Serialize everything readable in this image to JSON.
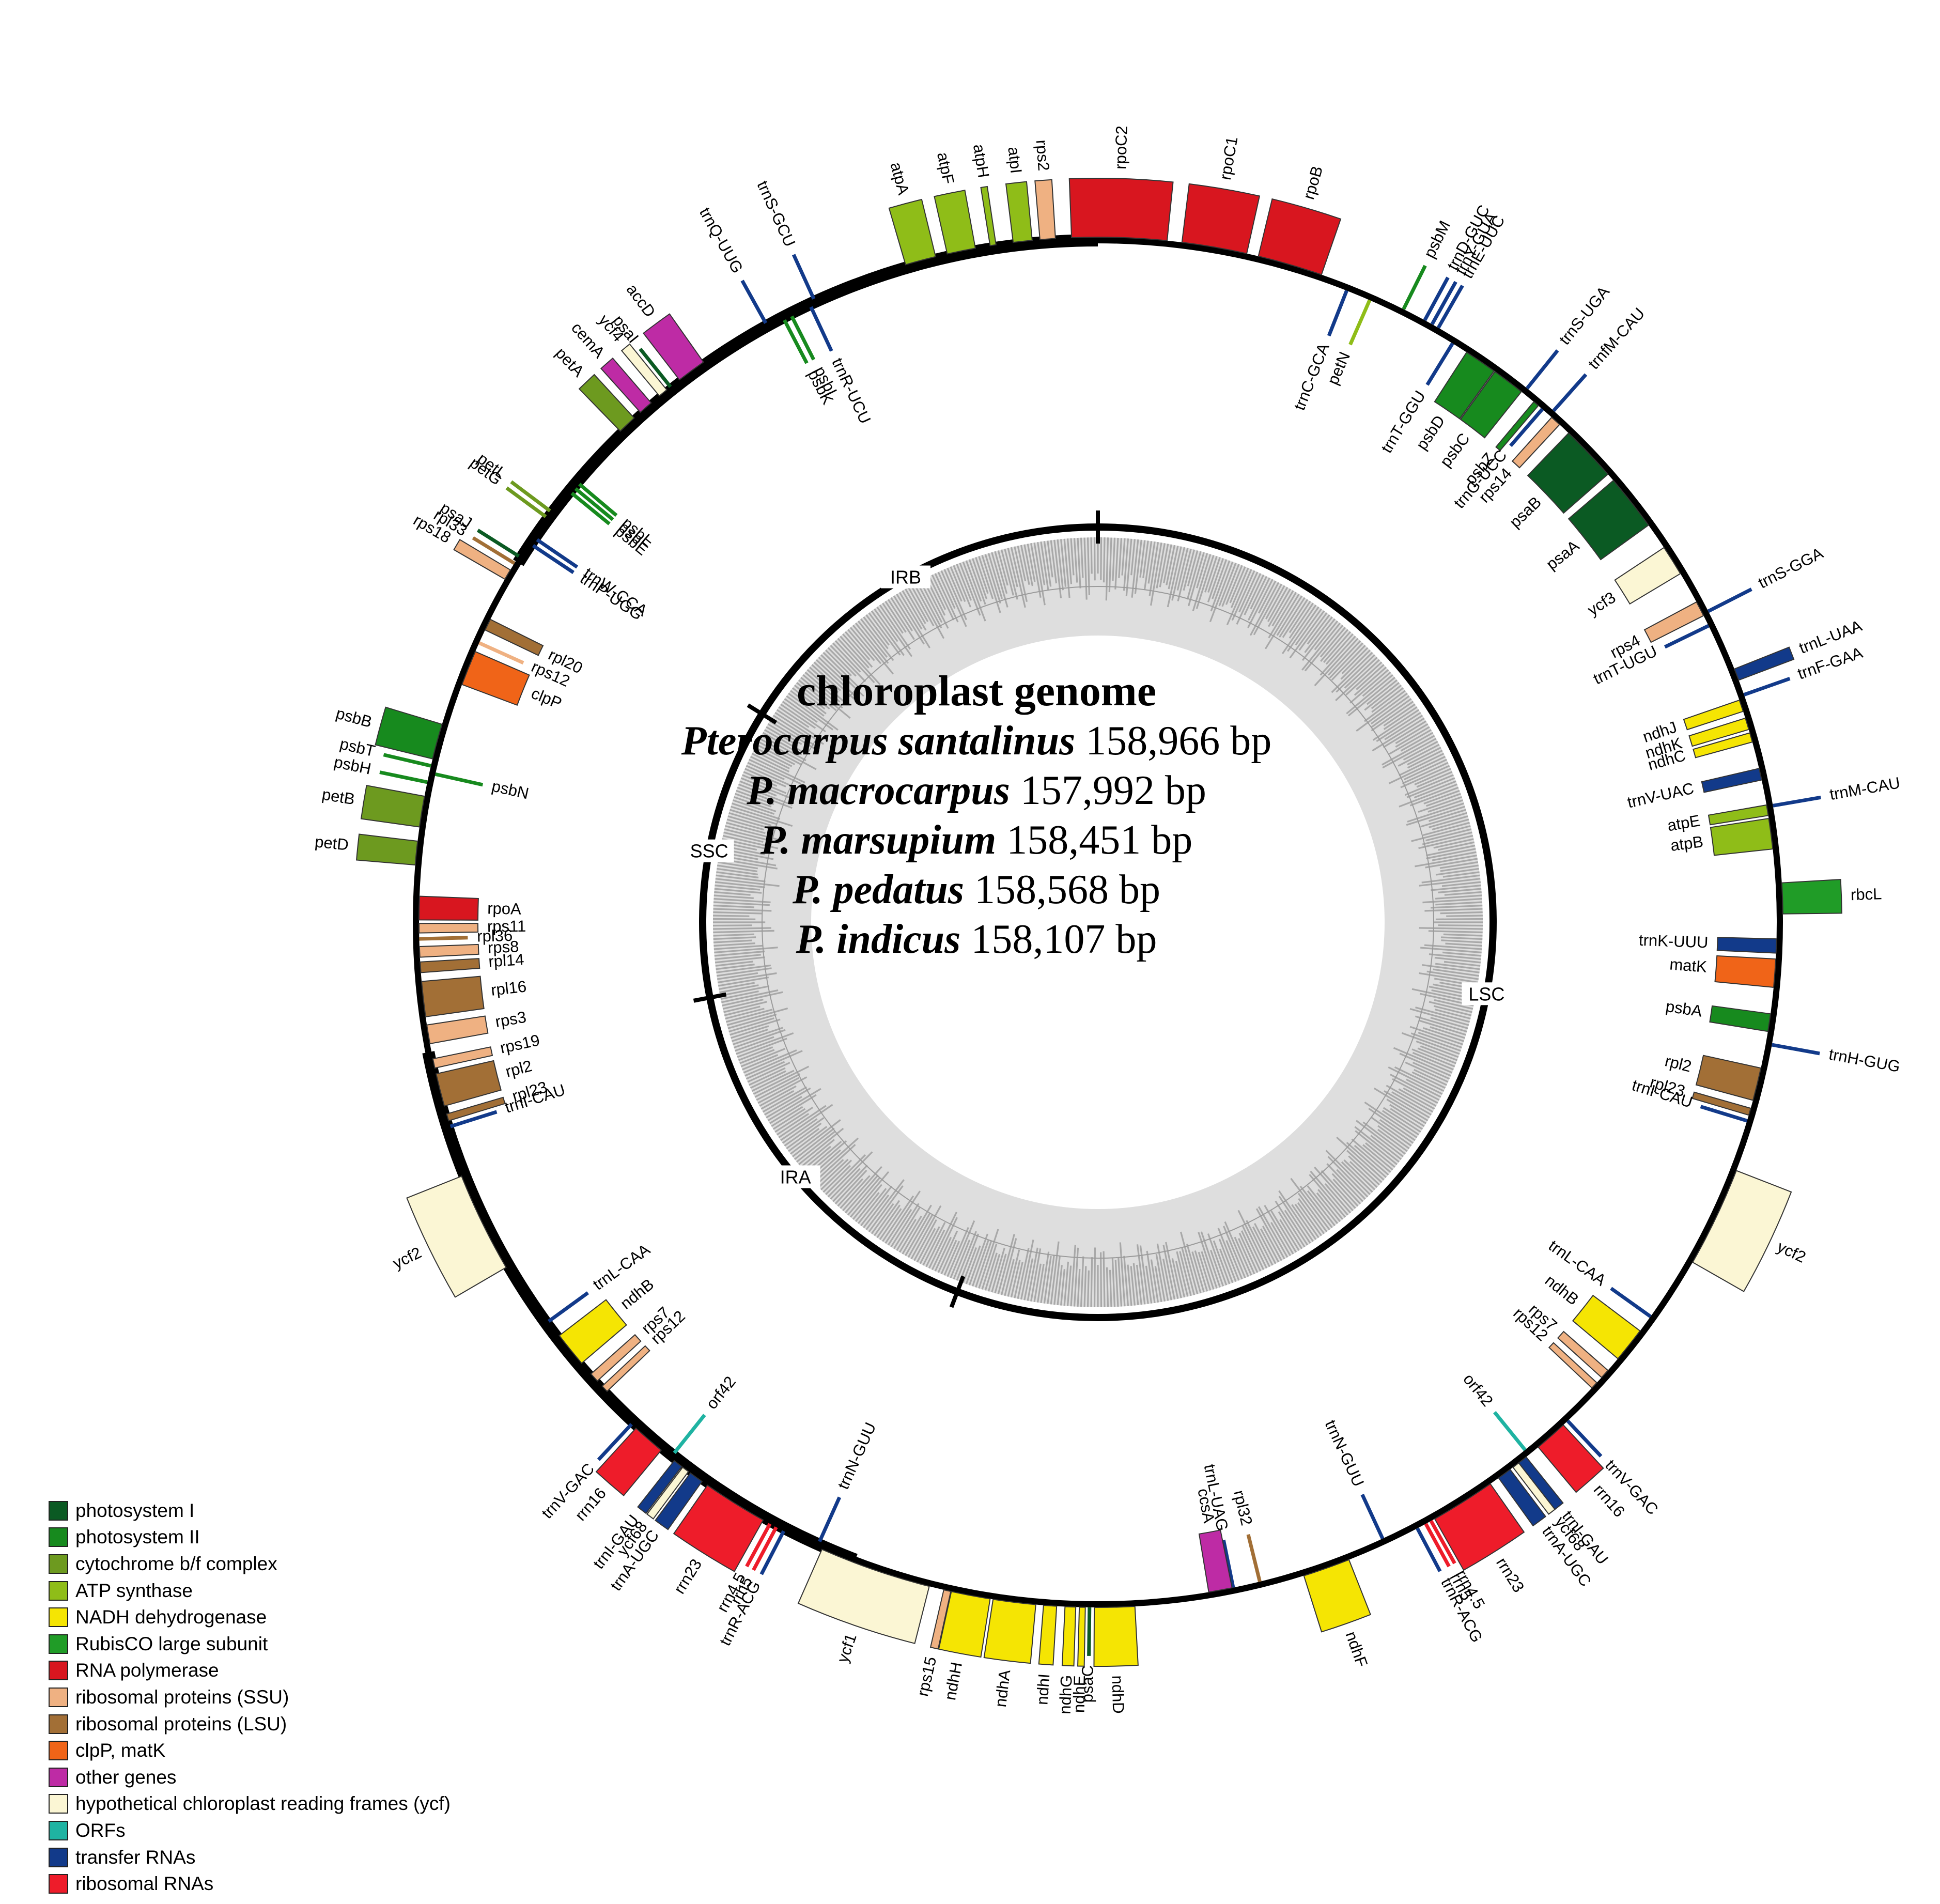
{
  "title": "chloroplast genome",
  "species": [
    {
      "name": "Pterocarpus santalinus",
      "size": "158,966 bp"
    },
    {
      "name": "P. macrocarpus",
      "size": "157,992 bp"
    },
    {
      "name": "P. marsupium",
      "size": "158,451 bp"
    },
    {
      "name": "P. pedatus",
      "size": "158,568 bp"
    },
    {
      "name": "P. indicus",
      "size": "158,107 bp"
    }
  ],
  "regions": [
    {
      "label": "LSC",
      "start": 0,
      "end": 88.7
    },
    {
      "label": "IRA",
      "start": 88.7,
      "end": 114.4
    },
    {
      "label": "SSC",
      "start": 114.4,
      "end": 133.3
    },
    {
      "label": "IRB",
      "start": 133.3,
      "end": 159.0
    }
  ],
  "legend": [
    {
      "key": "psI",
      "label": "photosystem I",
      "color": "#0b5a23"
    },
    {
      "key": "psII",
      "label": "photosystem II",
      "color": "#178a1e"
    },
    {
      "key": "cyt",
      "label": "cytochrome b/f complex",
      "color": "#6d9a1f"
    },
    {
      "key": "atp",
      "label": "ATP synthase",
      "color": "#8fbd18"
    },
    {
      "key": "ndh",
      "label": "NADH dehydrogenase",
      "color": "#f5e503"
    },
    {
      "key": "rbc",
      "label": "RubisCO large subunit",
      "color": "#209c27"
    },
    {
      "key": "rpo",
      "label": "RNA polymerase",
      "color": "#d8161f"
    },
    {
      "key": "ssu",
      "label": "ribosomal proteins (SSU)",
      "color": "#efb182"
    },
    {
      "key": "lsu",
      "label": "ribosomal proteins (LSU)",
      "color": "#a26f36"
    },
    {
      "key": "clp",
      "label": "clpP, matK",
      "color": "#f06418"
    },
    {
      "key": "oth",
      "label": "other genes",
      "color": "#be2ba5"
    },
    {
      "key": "ycf",
      "label": "hypothetical chloroplast reading frames (ycf)",
      "color": "#fbf6d4"
    },
    {
      "key": "orf",
      "label": "ORFs",
      "color": "#1fb3a2"
    },
    {
      "key": "trn",
      "label": "transfer RNAs",
      "color": "#123a8a"
    },
    {
      "key": "rrn",
      "label": "ribosomal RNAs",
      "color": "#ee1c2a"
    }
  ],
  "genes": [
    {
      "name": "trnQ-UUG",
      "angle": -29,
      "span": 0.3,
      "type": "trn",
      "out": true
    },
    {
      "name": "trnS-GCU",
      "angle": -24.5,
      "span": 0.3,
      "type": "trn",
      "out": true
    },
    {
      "name": "atpA",
      "angle": -15,
      "span": 2.6,
      "type": "atp",
      "out": true
    },
    {
      "name": "atpF",
      "angle": -11.5,
      "span": 2.4,
      "type": "atp",
      "out": true
    },
    {
      "name": "atpH",
      "angle": -8.8,
      "span": 0.5,
      "type": "atp",
      "out": true
    },
    {
      "name": "atpI",
      "angle": -6.3,
      "span": 1.6,
      "type": "atp",
      "out": true
    },
    {
      "name": "rps2",
      "angle": -4.2,
      "span": 1.3,
      "type": "ssu",
      "out": true
    },
    {
      "name": "rpoC2",
      "angle": 1.8,
      "span": 8.0,
      "type": "rpo",
      "out": true
    },
    {
      "name": "rpoC1",
      "angle": 9.8,
      "span": 5.5,
      "type": "rpo",
      "out": true
    },
    {
      "name": "rpoB",
      "angle": 16.3,
      "span": 5.5,
      "type": "rpo",
      "out": true
    },
    {
      "name": "psbM",
      "angle": 26.5,
      "span": 0.3,
      "type": "psII",
      "out": true
    },
    {
      "name": "trnD-GUC",
      "angle": 28.5,
      "span": 0.3,
      "type": "trn",
      "out": true
    },
    {
      "name": "trnY-GUA",
      "angle": 29.2,
      "span": 0.3,
      "type": "trn",
      "out": true
    },
    {
      "name": "trnE-UUC",
      "angle": 29.8,
      "span": 0.3,
      "type": "trn",
      "out": true
    },
    {
      "name": "trnC-GCA",
      "angle": 21.5,
      "span": 0.3,
      "type": "trn",
      "out": false
    },
    {
      "name": "petN",
      "angle": 23.6,
      "span": 0.3,
      "type": "atp",
      "out": false
    },
    {
      "name": "trnT-GGU",
      "angle": 31.5,
      "span": 0.3,
      "type": "trn",
      "out": false
    },
    {
      "name": "psbD",
      "angle": 34.3,
      "span": 2.8,
      "type": "psII",
      "out": false
    },
    {
      "name": "psbC",
      "angle": 37.2,
      "span": 2.8,
      "type": "psII",
      "out": false
    },
    {
      "name": "psbZ",
      "angle": 40.2,
      "span": 0.5,
      "type": "psII",
      "out": false
    },
    {
      "name": "trnG-UCC",
      "angle": 40.9,
      "span": 0.3,
      "type": "trn",
      "out": false
    },
    {
      "name": "trnS-UGA",
      "angle": 38.8,
      "span": 0.3,
      "type": "trn",
      "out": true
    },
    {
      "name": "trnfM-CAU",
      "angle": 41.7,
      "span": 0.3,
      "type": "trn",
      "out": true
    },
    {
      "name": "rps14",
      "angle": 42.4,
      "span": 0.9,
      "type": "ssu",
      "out": false
    },
    {
      "name": "psaB",
      "angle": 46.3,
      "span": 4.8,
      "type": "psI",
      "out": false
    },
    {
      "name": "psaA",
      "angle": 51.8,
      "span": 4.8,
      "type": "psI",
      "out": false
    },
    {
      "name": "ycf3",
      "angle": 57.8,
      "span": 2.6,
      "type": "ycf",
      "out": false
    },
    {
      "name": "rps4",
      "angle": 62.5,
      "span": 1.3,
      "type": "ssu",
      "out": false
    },
    {
      "name": "trnT-UGU",
      "angle": 64.1,
      "span": 0.3,
      "type": "trn",
      "out": false
    },
    {
      "name": "trnS-GGA",
      "angle": 63.0,
      "span": 0.3,
      "type": "trn",
      "out": true
    },
    {
      "name": "trnL-UAA",
      "angle": 68.8,
      "span": 1.0,
      "type": "trn",
      "out": true
    },
    {
      "name": "trnF-GAA",
      "angle": 70.6,
      "span": 0.4,
      "type": "trn",
      "out": true
    },
    {
      "name": "ndhJ",
      "angle": 71.4,
      "span": 1.0,
      "type": "ndh",
      "out": false
    },
    {
      "name": "ndhK",
      "angle": 73.0,
      "span": 1.0,
      "type": "ndh",
      "out": false
    },
    {
      "name": "ndhC",
      "angle": 74.2,
      "span": 0.8,
      "type": "ndh",
      "out": false
    },
    {
      "name": "trnV-UAC",
      "angle": 77.4,
      "span": 1.0,
      "type": "trn",
      "out": false
    },
    {
      "name": "trnM-CAU",
      "angle": 80.2,
      "span": 0.3,
      "type": "trn",
      "out": true
    },
    {
      "name": "atpE",
      "angle": 80.5,
      "span": 0.9,
      "type": "atp",
      "out": false
    },
    {
      "name": "atpB",
      "angle": 82.5,
      "span": 2.6,
      "type": "atp",
      "out": false
    },
    {
      "name": "rbcL",
      "angle": 88.0,
      "span": 2.6,
      "type": "rbc",
      "out": true
    },
    {
      "name": "trnK-UUU",
      "angle": 92.0,
      "span": 1.2,
      "type": "trn",
      "out": false
    },
    {
      "name": "matK",
      "angle": 94.3,
      "span": 2.4,
      "type": "clp",
      "out": false
    },
    {
      "name": "psbA",
      "angle": 98.5,
      "span": 1.5,
      "type": "psII",
      "out": false
    },
    {
      "name": "trnH-GUG",
      "angle": 100.3,
      "span": 0.3,
      "type": "trn",
      "out": true
    },
    {
      "name": "rpl2",
      "angle": 103.8,
      "span": 2.8,
      "type": "lsu",
      "out": false
    },
    {
      "name": "rpl23",
      "angle": 106.2,
      "span": 0.6,
      "type": "lsu",
      "out": false
    },
    {
      "name": "trnI-CAU",
      "angle": 107.0,
      "span": 0.3,
      "type": "trn",
      "out": false
    },
    {
      "name": "ycf2",
      "angle": 115.5,
      "span": 8.5,
      "type": "ycf",
      "out": true
    },
    {
      "name": "trnL-CAA",
      "angle": 125.5,
      "span": 0.3,
      "type": "trn",
      "out": false
    },
    {
      "name": "ndhB",
      "angle": 128.5,
      "span": 3.0,
      "type": "ndh",
      "out": false
    },
    {
      "name": "rps7",
      "angle": 131.7,
      "span": 0.8,
      "type": "ssu",
      "out": false
    },
    {
      "name": "rps12",
      "angle": 133.0,
      "span": 0.6,
      "type": "ssu",
      "out": false
    },
    {
      "name": "trnV-GAC",
      "angle": 136.7,
      "span": 0.3,
      "type": "trn",
      "out": true
    },
    {
      "name": "rrn16",
      "angle": 138.6,
      "span": 2.8,
      "type": "rrn",
      "out": true
    },
    {
      "name": "orf42",
      "angle": 141.0,
      "span": 0.3,
      "type": "orf",
      "out": false
    },
    {
      "name": "trnI-GAU",
      "angle": 141.7,
      "span": 0.8,
      "type": "trn",
      "out": true
    },
    {
      "name": "ycf68",
      "angle": 142.4,
      "span": 0.6,
      "type": "ycf",
      "out": true
    },
    {
      "name": "trnA-UGC",
      "angle": 143.6,
      "span": 1.2,
      "type": "trn",
      "out": true
    },
    {
      "name": "rrn23",
      "angle": 147.8,
      "span": 5.5,
      "type": "rrn",
      "out": true
    },
    {
      "name": "rrn4.5",
      "angle": 150.9,
      "span": 0.3,
      "type": "rrn",
      "out": true
    },
    {
      "name": "rrn5",
      "angle": 151.4,
      "span": 0.3,
      "type": "rrn",
      "out": true
    },
    {
      "name": "trnR-ACG",
      "angle": 152.2,
      "span": 0.3,
      "type": "trn",
      "out": true
    },
    {
      "name": "trnN-GUU",
      "angle": 155.2,
      "span": 0.3,
      "type": "trn",
      "out": false
    },
    {
      "name": "ndhF",
      "angle": 160.5,
      "span": 4.0,
      "type": "ndh",
      "out": true
    },
    {
      "name": "rpl32",
      "angle": 166.2,
      "span": 0.3,
      "type": "lsu",
      "out": false
    },
    {
      "name": "trnL-UAG",
      "angle": 168.5,
      "span": 0.3,
      "type": "trn",
      "out": false
    },
    {
      "name": "ccsA",
      "angle": 169.6,
      "span": 2.0,
      "type": "oth",
      "out": false
    },
    {
      "name": "ndhD",
      "angle": 178.6,
      "span": 3.4,
      "type": "ndh",
      "out": true
    },
    {
      "name": "psaC",
      "angle": 180.7,
      "span": 0.4,
      "type": "psI",
      "out": true
    },
    {
      "name": "ndhE",
      "angle": 181.3,
      "span": 0.5,
      "type": "ndh",
      "out": true
    },
    {
      "name": "ndhG",
      "angle": 182.3,
      "span": 0.9,
      "type": "ndh",
      "out": true
    },
    {
      "name": "ndhI",
      "angle": 184.0,
      "span": 1.1,
      "type": "ndh",
      "out": true
    },
    {
      "name": "ndhA",
      "angle": 187.0,
      "span": 3.6,
      "type": "ndh",
      "out": true
    },
    {
      "name": "ndhH",
      "angle": 190.7,
      "span": 3.3,
      "type": "ndh",
      "out": true
    },
    {
      "name": "rps15",
      "angle": 192.7,
      "span": 0.6,
      "type": "ssu",
      "out": true
    },
    {
      "name": "ycf1",
      "angle": 199.0,
      "span": 9.5,
      "type": "ycf",
      "out": true
    },
    {
      "name": "trnN-GUU",
      "angle": 204.2,
      "span": 0.3,
      "type": "trn",
      "out": false
    },
    {
      "name": "trnR-ACG",
      "angle": 207.3,
      "span": 0.3,
      "type": "trn",
      "out": true
    },
    {
      "name": "rrn5",
      "angle": 208.0,
      "span": 0.3,
      "type": "rrn",
      "out": true
    },
    {
      "name": "rrn4.5",
      "angle": 208.6,
      "span": 0.3,
      "type": "rrn",
      "out": true
    },
    {
      "name": "rrn23",
      "angle": 212.0,
      "span": 5.5,
      "type": "rrn",
      "out": true
    },
    {
      "name": "trnA-UGC",
      "angle": 215.9,
      "span": 1.2,
      "type": "trn",
      "out": true
    },
    {
      "name": "ycf68",
      "angle": 217.0,
      "span": 0.6,
      "type": "ycf",
      "out": true
    },
    {
      "name": "trnI-GAU",
      "angle": 217.8,
      "span": 0.8,
      "type": "trn",
      "out": true
    },
    {
      "name": "orf42",
      "angle": 218.6,
      "span": 0.3,
      "type": "orf",
      "out": false
    },
    {
      "name": "rrn16",
      "angle": 221.0,
      "span": 2.8,
      "type": "rrn",
      "out": true
    },
    {
      "name": "trnV-GAC",
      "angle": 222.9,
      "span": 0.3,
      "type": "trn",
      "out": true
    },
    {
      "name": "rps12",
      "angle": 226.6,
      "span": 0.6,
      "type": "ssu",
      "out": false
    },
    {
      "name": "rps7",
      "angle": 227.9,
      "span": 0.8,
      "type": "ssu",
      "out": false
    },
    {
      "name": "ndhB",
      "angle": 231.0,
      "span": 3.0,
      "type": "ndh",
      "out": false
    },
    {
      "name": "trnL-CAA",
      "angle": 234.0,
      "span": 0.3,
      "type": "trn",
      "out": false
    },
    {
      "name": "ycf2",
      "angle": 244.0,
      "span": 8.5,
      "type": "ycf",
      "out": true
    },
    {
      "name": "trnI-CAU",
      "angle": 252.5,
      "span": 0.3,
      "type": "trn",
      "out": false
    },
    {
      "name": "rpl23",
      "angle": 253.3,
      "span": 0.6,
      "type": "lsu",
      "out": false
    },
    {
      "name": "rpl2",
      "angle": 255.7,
      "span": 2.8,
      "type": "lsu",
      "out": false
    },
    {
      "name": "rps19",
      "angle": 258.0,
      "span": 0.8,
      "type": "ssu",
      "out": false
    },
    {
      "name": "rps3",
      "angle": 260.5,
      "span": 1.6,
      "type": "ssu",
      "out": false
    },
    {
      "name": "rpl16",
      "angle": 263.5,
      "span": 3.0,
      "type": "lsu",
      "out": false
    },
    {
      "name": "rpl14",
      "angle": 266.2,
      "span": 0.9,
      "type": "lsu",
      "out": false
    },
    {
      "name": "rps8",
      "angle": 267.5,
      "span": 0.9,
      "type": "ssu",
      "out": false
    },
    {
      "name": "rpl36",
      "angle": 268.6,
      "span": 0.3,
      "type": "lsu",
      "out": false
    },
    {
      "name": "rps11",
      "angle": 269.5,
      "span": 0.8,
      "type": "ssu",
      "out": false
    },
    {
      "name": "rpoA",
      "angle": 271.2,
      "span": 2.0,
      "type": "rpo",
      "out": false
    },
    {
      "name": "petD",
      "angle": 275.8,
      "span": 2.0,
      "type": "cyt",
      "out": true
    },
    {
      "name": "petB",
      "angle": 279.3,
      "span": 2.6,
      "type": "cyt",
      "out": true
    },
    {
      "name": "psbH",
      "angle": 281.8,
      "span": 0.3,
      "type": "psII",
      "out": true
    },
    {
      "name": "psbN",
      "angle": 282.6,
      "span": 0.3,
      "type": "psII",
      "out": false
    },
    {
      "name": "psbT",
      "angle": 283.2,
      "span": 0.3,
      "type": "psII",
      "out": true
    },
    {
      "name": "psbB",
      "angle": 285.3,
      "span": 3.0,
      "type": "psII",
      "out": true
    },
    {
      "name": "clpP",
      "angle": 292.0,
      "span": 3.0,
      "type": "clp",
      "out": false
    },
    {
      "name": "rps12",
      "angle": 294.3,
      "span": 0.4,
      "type": "ssu",
      "out": false
    },
    {
      "name": "rpl20",
      "angle": 296.0,
      "span": 1.0,
      "type": "lsu",
      "out": false
    },
    {
      "name": "rps18",
      "angle": 300.5,
      "span": 0.9,
      "type": "ssu",
      "out": true
    },
    {
      "name": "rpl33",
      "angle": 301.6,
      "span": 0.4,
      "type": "lsu",
      "out": true
    },
    {
      "name": "psaJ",
      "angle": 302.3,
      "span": 0.3,
      "type": "psI",
      "out": true
    },
    {
      "name": "trnP-UGG",
      "angle": 303.7,
      "span": 0.3,
      "type": "trn",
      "out": false
    },
    {
      "name": "trnW-CCA",
      "angle": 304.3,
      "span": 0.3,
      "type": "trn",
      "out": false
    },
    {
      "name": "petG",
      "angle": 306.3,
      "span": 0.3,
      "type": "cyt",
      "out": true
    },
    {
      "name": "petL",
      "angle": 306.9,
      "span": 0.3,
      "type": "cyt",
      "out": true
    },
    {
      "name": "psbE",
      "angle": 309.2,
      "span": 0.4,
      "type": "psII",
      "out": false
    },
    {
      "name": "psbF",
      "angle": 309.7,
      "span": 0.3,
      "type": "psII",
      "out": false
    },
    {
      "name": "psbL",
      "angle": 310.2,
      "span": 0.3,
      "type": "psII",
      "out": false
    },
    {
      "name": "petA",
      "angle": 316.6,
      "span": 1.6,
      "type": "cyt",
      "out": true
    },
    {
      "name": "cemA",
      "angle": 318.7,
      "span": 1.2,
      "type": "oth",
      "out": true
    },
    {
      "name": "ycf4",
      "angle": 320.6,
      "span": 0.8,
      "type": "ycf",
      "out": true
    },
    {
      "name": "psaI",
      "angle": 321.4,
      "span": 0.3,
      "type": "psI",
      "out": true
    },
    {
      "name": "accD",
      "angle": 323.6,
      "span": 2.5,
      "type": "oth",
      "out": true
    },
    {
      "name": "trnR-UCU",
      "angle": 335.0,
      "span": 0.3,
      "type": "trn",
      "out": false
    },
    {
      "name": "psbI",
      "angle": 333.2,
      "span": 0.3,
      "type": "psII",
      "out": false
    },
    {
      "name": "psbK",
      "angle": 332.5,
      "span": 0.3,
      "type": "psII",
      "out": false
    }
  ]
}
